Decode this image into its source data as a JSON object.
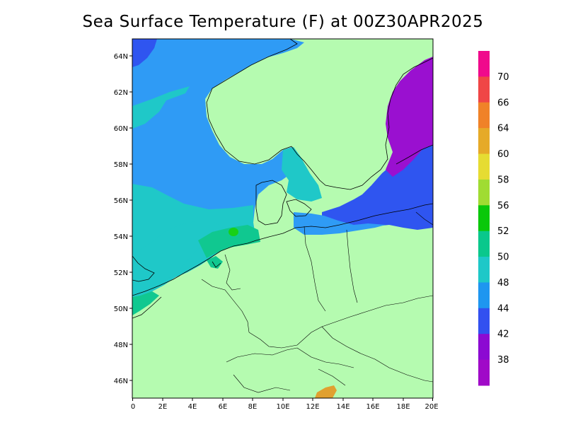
{
  "title": "Sea Surface Temperature (F) at 00Z30APR2025",
  "map": {
    "lat_labels": [
      "64N",
      "62N",
      "60N",
      "58N",
      "56N",
      "54N",
      "52N",
      "50N",
      "48N",
      "46N"
    ],
    "lon_labels": [
      "0",
      "2E",
      "4E",
      "6E",
      "8E",
      "10E",
      "12E",
      "14E",
      "16E",
      "18E",
      "20E"
    ],
    "colors": {
      "land": "#b5fbb0",
      "sst_44_48": "#2f9bf5",
      "sst_48_50": "#1fc8c8",
      "sst_50_52": "#10c890",
      "sst_42_44": "#2f55f0",
      "sst_38_42": "#9a10d0",
      "sst_60_64": "#e0a030",
      "sst_52_56": "#18d018"
    }
  },
  "colorbar": {
    "labels": [
      "70",
      "66",
      "64",
      "60",
      "58",
      "56",
      "52",
      "50",
      "48",
      "44",
      "42",
      "38"
    ],
    "colors": [
      "#f00a8c",
      "#f04646",
      "#f08228",
      "#e6aa28",
      "#e6dc32",
      "#a0dc32",
      "#0ac80a",
      "#0ac88c",
      "#1ec8c8",
      "#1e96f0",
      "#3250f0",
      "#8c0ad2",
      "#a00ac8"
    ]
  }
}
